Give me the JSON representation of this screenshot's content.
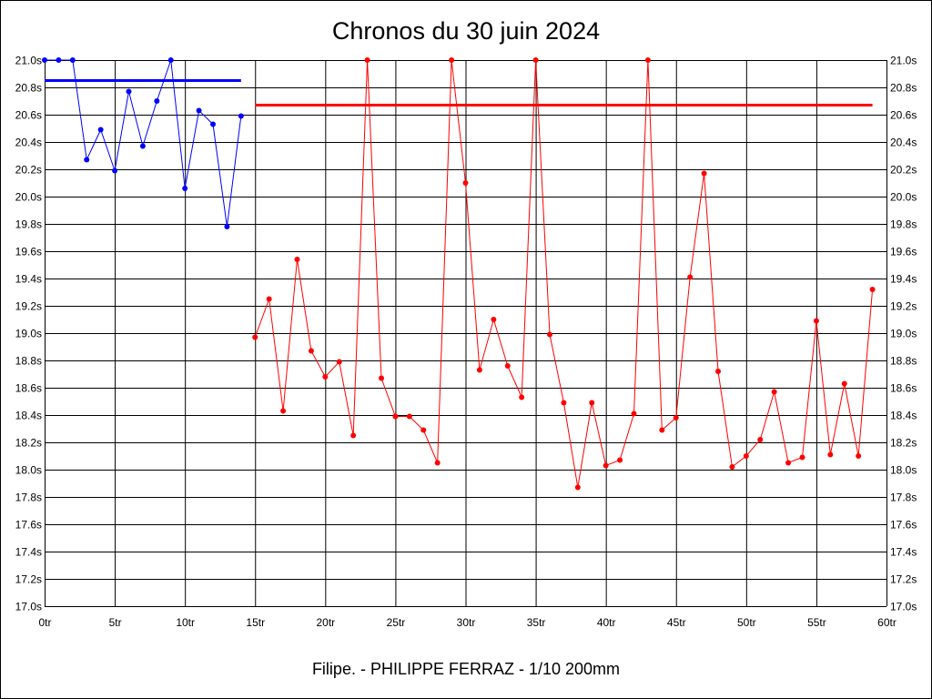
{
  "chart_data": {
    "type": "line",
    "title": "Chronos du 30 juin 2024",
    "footer": "Filipe. - PHILIPPE FERRAZ - 1/10 200mm",
    "xlabel": "",
    "ylabel": "",
    "xlim": [
      0,
      60
    ],
    "ylim": [
      17.0,
      21.0
    ],
    "x_ticks": [
      "0tr",
      "5tr",
      "10tr",
      "15tr",
      "20tr",
      "25tr",
      "30tr",
      "35tr",
      "40tr",
      "45tr",
      "50tr",
      "55tr",
      "60tr"
    ],
    "y_ticks": [
      "17.0s",
      "17.2s",
      "17.4s",
      "17.6s",
      "17.8s",
      "18.0s",
      "18.2s",
      "18.4s",
      "18.6s",
      "18.8s",
      "19.0s",
      "19.2s",
      "19.4s",
      "19.6s",
      "19.8s",
      "20.0s",
      "20.2s",
      "20.4s",
      "20.6s",
      "20.8s",
      "21.0s"
    ],
    "grid": true,
    "series": [
      {
        "name": "blue",
        "color": "#0000ff",
        "x": [
          0,
          1,
          2,
          3,
          4,
          5,
          6,
          7,
          8,
          9,
          10,
          11,
          12,
          13,
          14
        ],
        "values": [
          21.0,
          21.0,
          21.0,
          20.27,
          20.49,
          20.19,
          20.77,
          20.37,
          20.7,
          21.0,
          20.06,
          20.63,
          20.53,
          19.78,
          20.59
        ],
        "mean": 20.85
      },
      {
        "name": "red",
        "color": "#ff0000",
        "x": [
          15,
          16,
          17,
          18,
          19,
          20,
          21,
          22,
          23,
          24,
          25,
          26,
          27,
          28,
          29,
          30,
          31,
          32,
          33,
          34,
          35,
          36,
          37,
          38,
          39,
          40,
          41,
          42,
          43,
          44,
          45,
          46,
          47,
          48,
          49,
          50,
          51,
          52,
          53,
          54,
          55,
          56,
          57,
          58,
          59
        ],
        "values": [
          18.97,
          19.25,
          18.43,
          19.54,
          18.87,
          18.68,
          18.79,
          18.25,
          21.0,
          18.67,
          18.39,
          18.39,
          18.29,
          18.05,
          21.0,
          20.1,
          18.73,
          19.1,
          18.76,
          18.53,
          21.0,
          18.99,
          18.49,
          17.87,
          18.49,
          18.03,
          18.07,
          18.41,
          21.0,
          18.29,
          18.38,
          19.41,
          20.17,
          18.72,
          18.02,
          18.1,
          18.22,
          18.57,
          18.05,
          18.09,
          19.09,
          18.11,
          18.63,
          18.1,
          19.32
        ],
        "mean": 20.67
      }
    ]
  }
}
